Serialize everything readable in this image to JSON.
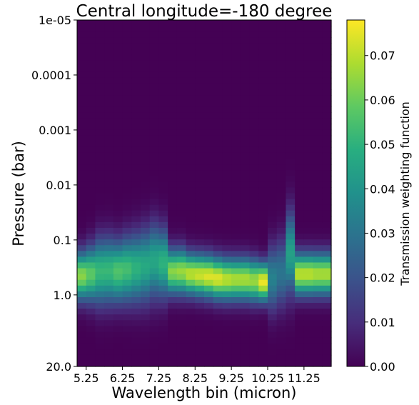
{
  "chart_data": {
    "type": "heatmap",
    "title": "Central longitude=-180 degree",
    "xlabel": "Wavelength bin (micron)",
    "ylabel": "Pressure (bar)",
    "colorbar_label": "Transmission weighting function",
    "colormap": "viridis",
    "y_scale": "log",
    "ylim": [
      20.0,
      1e-05
    ],
    "xlim": [
      5.0,
      12.0
    ],
    "zlim": [
      0.0,
      0.078
    ],
    "x_ticks": [
      {
        "value": 5.25,
        "label": "5.25"
      },
      {
        "value": 6.25,
        "label": "6.25"
      },
      {
        "value": 7.25,
        "label": "7.25"
      },
      {
        "value": 8.25,
        "label": "8.25"
      },
      {
        "value": 9.25,
        "label": "9.25"
      },
      {
        "value": 10.25,
        "label": "10.25"
      },
      {
        "value": 11.25,
        "label": "11.25"
      }
    ],
    "y_ticks": [
      {
        "value": 1e-05,
        "label": "1e-05"
      },
      {
        "value": 0.0001,
        "label": "0.0001"
      },
      {
        "value": 0.001,
        "label": "0.001"
      },
      {
        "value": 0.01,
        "label": "0.01"
      },
      {
        "value": 0.1,
        "label": "0.1"
      },
      {
        "value": 1.0,
        "label": "1.0"
      },
      {
        "value": 20.0,
        "label": "20.0"
      }
    ],
    "colorbar_ticks": [
      {
        "value": 0.0,
        "label": "0.00"
      },
      {
        "value": 0.01,
        "label": "0.01"
      },
      {
        "value": 0.02,
        "label": "0.02"
      },
      {
        "value": 0.03,
        "label": "0.03"
      },
      {
        "value": 0.04,
        "label": "0.04"
      },
      {
        "value": 0.05,
        "label": "0.05"
      },
      {
        "value": 0.06,
        "label": "0.06"
      },
      {
        "value": 0.07,
        "label": "0.07"
      }
    ],
    "columns": [
      {
        "wavelength": 5.0,
        "peak_pressure": 0.45,
        "width_dex": 0.3,
        "peak": 0.064
      },
      {
        "wavelength": 5.25,
        "peak_pressure": 0.42,
        "width_dex": 0.34,
        "peak": 0.058
      },
      {
        "wavelength": 5.5,
        "peak_pressure": 0.38,
        "width_dex": 0.4,
        "peak": 0.052
      },
      {
        "wavelength": 5.75,
        "peak_pressure": 0.37,
        "width_dex": 0.4,
        "peak": 0.052
      },
      {
        "wavelength": 6.0,
        "peak_pressure": 0.38,
        "width_dex": 0.38,
        "peak": 0.056
      },
      {
        "wavelength": 6.25,
        "peak_pressure": 0.35,
        "width_dex": 0.4,
        "peak": 0.054
      },
      {
        "wavelength": 6.5,
        "peak_pressure": 0.33,
        "width_dex": 0.42,
        "peak": 0.05
      },
      {
        "wavelength": 6.75,
        "peak_pressure": 0.3,
        "width_dex": 0.44,
        "peak": 0.047
      },
      {
        "wavelength": 7.0,
        "peak_pressure": 0.25,
        "width_dex": 0.45,
        "peak": 0.046
      },
      {
        "wavelength": 7.25,
        "peak_pressure": 0.27,
        "width_dex": 0.42,
        "peak": 0.05
      },
      {
        "wavelength": 7.5,
        "peak_pressure": 0.38,
        "width_dex": 0.28,
        "peak": 0.064
      },
      {
        "wavelength": 7.75,
        "peak_pressure": 0.38,
        "width_dex": 0.28,
        "peak": 0.066
      },
      {
        "wavelength": 8.0,
        "peak_pressure": 0.42,
        "width_dex": 0.26,
        "peak": 0.07
      },
      {
        "wavelength": 8.25,
        "peak_pressure": 0.44,
        "width_dex": 0.26,
        "peak": 0.072
      },
      {
        "wavelength": 8.5,
        "peak_pressure": 0.46,
        "width_dex": 0.26,
        "peak": 0.074
      },
      {
        "wavelength": 8.75,
        "peak_pressure": 0.5,
        "width_dex": 0.26,
        "peak": 0.074
      },
      {
        "wavelength": 9.0,
        "peak_pressure": 0.52,
        "width_dex": 0.26,
        "peak": 0.07
      },
      {
        "wavelength": 9.25,
        "peak_pressure": 0.52,
        "width_dex": 0.26,
        "peak": 0.068
      },
      {
        "wavelength": 9.5,
        "peak_pressure": 0.52,
        "width_dex": 0.26,
        "peak": 0.068
      },
      {
        "wavelength": 9.75,
        "peak_pressure": 0.55,
        "width_dex": 0.26,
        "peak": 0.066
      },
      {
        "wavelength": 10.0,
        "peak_pressure": 0.58,
        "width_dex": 0.24,
        "peak": 0.076
      },
      {
        "wavelength": 10.25,
        "peak_pressure": 0.5,
        "width_dex": 0.4,
        "peak": 0.034
      },
      {
        "wavelength": 10.5,
        "peak_pressure": 0.4,
        "width_dex": 0.42,
        "peak": 0.03
      },
      {
        "wavelength": 10.75,
        "peak_pressure": 0.18,
        "width_dex": 0.5,
        "peak": 0.044
      },
      {
        "wavelength": 11.0,
        "peak_pressure": 0.42,
        "width_dex": 0.26,
        "peak": 0.07
      },
      {
        "wavelength": 11.25,
        "peak_pressure": 0.42,
        "width_dex": 0.26,
        "peak": 0.07
      },
      {
        "wavelength": 11.5,
        "peak_pressure": 0.42,
        "width_dex": 0.26,
        "peak": 0.068
      },
      {
        "wavelength": 11.75,
        "peak_pressure": 0.42,
        "width_dex": 0.26,
        "peak": 0.068
      }
    ]
  }
}
